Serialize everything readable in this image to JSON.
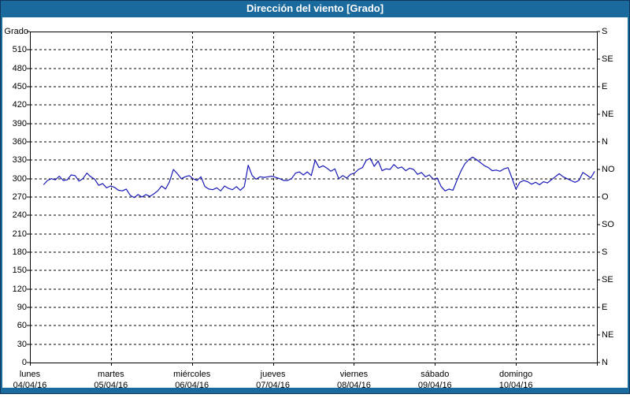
{
  "window": {
    "title": "Dirección del viento [Grado]"
  },
  "colors": {
    "titlebar_bg": "#1a6a9e",
    "title_text": "#ffffff",
    "frame": "#1a6a9e",
    "frame_outline": "#10385f",
    "plot_background": "#ffffff",
    "axis": "#000000",
    "grid": "#000000",
    "line": "#1818b8",
    "label_text": "#000000"
  },
  "chart_data": {
    "type": "line",
    "title": "Dirección del viento [Grado]",
    "ylabel": "Grado",
    "ylim": [
      0,
      540
    ],
    "grid": "dashed",
    "legend": "none",
    "y_ticks_left": [
      0,
      30,
      60,
      90,
      120,
      150,
      180,
      210,
      240,
      270,
      300,
      330,
      360,
      390,
      420,
      450,
      480,
      510
    ],
    "y_tick_step_left": 30,
    "right_axis_ticks": [
      {
        "value": 0,
        "label": "N"
      },
      {
        "value": 45,
        "label": "NE"
      },
      {
        "value": 90,
        "label": "E"
      },
      {
        "value": 135,
        "label": "SE"
      },
      {
        "value": 180,
        "label": "S"
      },
      {
        "value": 225,
        "label": "SO"
      },
      {
        "value": 270,
        "label": "O"
      },
      {
        "value": 315,
        "label": "NO"
      },
      {
        "value": 360,
        "label": "N"
      },
      {
        "value": 405,
        "label": "NE"
      },
      {
        "value": 450,
        "label": "E"
      },
      {
        "value": 495,
        "label": "SE"
      },
      {
        "value": 540,
        "label": "S"
      }
    ],
    "x_days": [
      {
        "name": "lunes",
        "date": "04/04/16"
      },
      {
        "name": "martes",
        "date": "05/04/16"
      },
      {
        "name": "miércoles",
        "date": "06/04/16"
      },
      {
        "name": "jueves",
        "date": "07/04/16"
      },
      {
        "name": "viernes",
        "date": "08/04/16"
      },
      {
        "name": "sábado",
        "date": "09/04/16"
      },
      {
        "name": "domingo",
        "date": "10/04/16"
      }
    ],
    "series": [
      {
        "name": "Dirección del viento",
        "color": "#1818b8",
        "x_span_frac": [
          0.024,
          0.996
        ],
        "values": [
          290,
          297,
          300,
          298,
          304,
          297,
          298,
          306,
          305,
          296,
          300,
          309,
          303,
          299,
          289,
          292,
          285,
          288,
          286,
          281,
          280,
          283,
          273,
          269,
          274,
          270,
          274,
          271,
          275,
          280,
          288,
          283,
          295,
          315,
          308,
          300,
          303,
          305,
          300,
          297,
          303,
          287,
          283,
          282,
          285,
          280,
          288,
          284,
          282,
          287,
          281,
          287,
          322,
          305,
          299,
          303,
          302,
          303,
          304,
          302,
          300,
          297,
          297,
          300,
          309,
          311,
          306,
          311,
          305,
          330,
          318,
          321,
          317,
          312,
          316,
          300,
          305,
          301,
          307,
          309,
          315,
          318,
          330,
          333,
          320,
          329,
          313,
          316,
          315,
          323,
          317,
          319,
          313,
          317,
          315,
          307,
          310,
          303,
          306,
          299,
          301,
          287,
          280,
          283,
          281,
          297,
          312,
          324,
          331,
          335,
          331,
          326,
          321,
          318,
          313,
          314,
          312,
          316,
          318,
          301,
          283,
          294,
          297,
          295,
          291,
          294,
          290,
          295,
          293,
          298,
          303,
          308,
          303,
          300,
          297,
          294,
          297,
          310,
          306,
          301,
          312
        ]
      }
    ]
  }
}
